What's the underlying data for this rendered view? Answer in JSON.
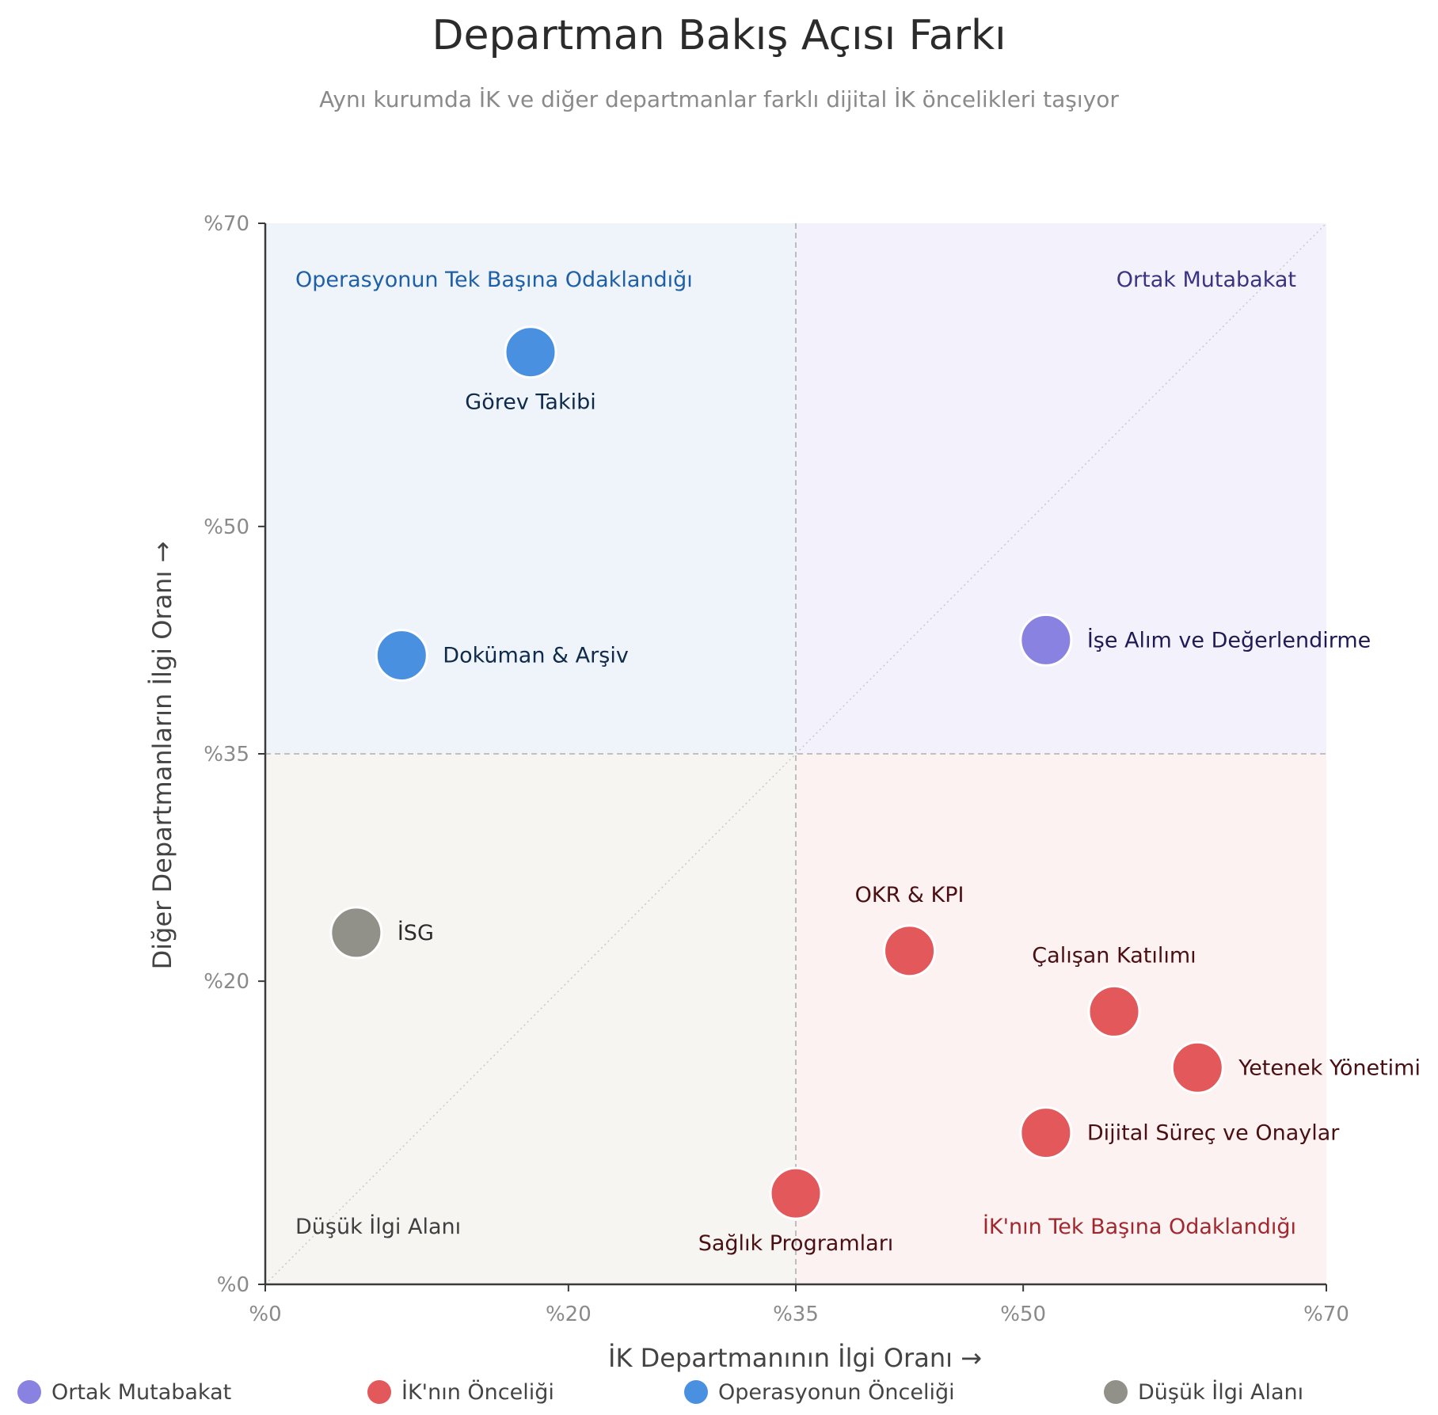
{
  "chart_data": {
    "type": "scatter",
    "title": "Departman Bakış Açısı Farkı",
    "subtitle": "Aynı kurumda İK ve diğer departmanlar farklı dijital İK öncelikleri taşıyor",
    "xlabel": "İK Departmanının İlgi Oranı →",
    "ylabel": "Diğer Departmanların İlgi Oranı →",
    "xlim": [
      0,
      70
    ],
    "ylim": [
      0,
      70
    ],
    "xticks": [
      {
        "value": 0,
        "label": "%0"
      },
      {
        "value": 20,
        "label": "%20"
      },
      {
        "value": 35,
        "label": "%35"
      },
      {
        "value": 50,
        "label": "%50"
      },
      {
        "value": 70,
        "label": "%70"
      }
    ],
    "yticks": [
      {
        "value": 0,
        "label": "%0"
      },
      {
        "value": 20,
        "label": "%20"
      },
      {
        "value": 35,
        "label": "%35"
      },
      {
        "value": 50,
        "label": "%50"
      },
      {
        "value": 70,
        "label": "%70"
      }
    ],
    "thresholds": {
      "x": 35,
      "y": 35
    },
    "diagonal_reference": true,
    "quadrants": [
      {
        "key": "top-left",
        "label": "Operasyonun Tek Başına Odaklandığı",
        "fill": "#eef4fa",
        "text_color": "#1f5fa6"
      },
      {
        "key": "top-right",
        "label": "Ortak Mutabakat",
        "fill": "#f3f2fc",
        "text_color": "#3a3480"
      },
      {
        "key": "bottom-left",
        "label": "Düşük İlgi Alanı",
        "fill": "#f6f5f2",
        "text_color": "#3f3f3f"
      },
      {
        "key": "bottom-right",
        "label": "İK'nın Tek Başına Odaklandığı",
        "fill": "#fcf2f2",
        "text_color": "#a1282e"
      }
    ],
    "series": [
      {
        "name": "Ortak Mutabakat",
        "color": "#8a82e0",
        "label_color": "#1f1a55",
        "points": [
          {
            "x": 51.5,
            "y": 42.5,
            "label": "İşe Alım ve Değerlendirme",
            "label_pos": "right"
          }
        ]
      },
      {
        "name": "İK'nın Önceliği",
        "color": "#e3585b",
        "label_color": "#4a0f12",
        "points": [
          {
            "x": 42.5,
            "y": 22,
            "label": "OKR & KPI",
            "label_pos": "above"
          },
          {
            "x": 56,
            "y": 18,
            "label": "Çalışan Katılımı",
            "label_pos": "above"
          },
          {
            "x": 61.5,
            "y": 14.3,
            "label": "Yetenek Yönetimi",
            "label_pos": "right"
          },
          {
            "x": 51.5,
            "y": 10,
            "label": "Dijital Süreç ve Onaylar",
            "label_pos": "right"
          },
          {
            "x": 35,
            "y": 6,
            "label": "Sağlık Programları",
            "label_pos": "below"
          }
        ]
      },
      {
        "name": "Operasyonun Önceliği",
        "color": "#4a90e0",
        "label_color": "#0f2a4a",
        "points": [
          {
            "x": 17.5,
            "y": 61.5,
            "label": "Görev Takibi",
            "label_pos": "below"
          },
          {
            "x": 9,
            "y": 41.5,
            "label": "Doküman & Arşiv",
            "label_pos": "right"
          }
        ]
      },
      {
        "name": "Düşük İlgi Alanı",
        "color": "#919189",
        "label_color": "#2b2b2b",
        "points": [
          {
            "x": 6,
            "y": 23.2,
            "label": "İSG",
            "label_pos": "right"
          }
        ]
      }
    ],
    "legend_position": "bottom"
  }
}
